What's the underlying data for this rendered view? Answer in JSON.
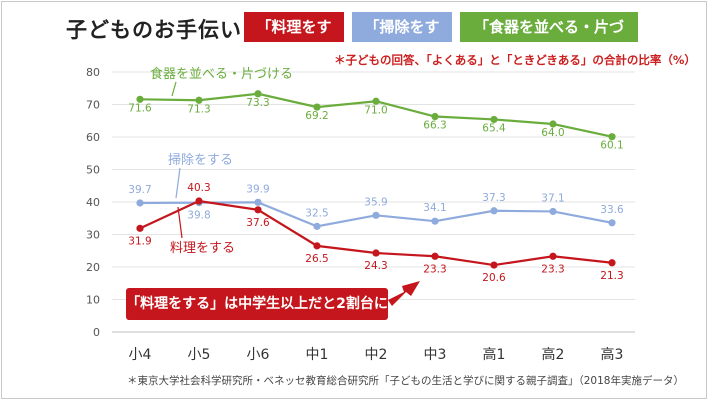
{
  "title": "子どものお手伝い",
  "legend": [
    {
      "label": "「料理をする」",
      "color": "#c4161c"
    },
    {
      "label": "「掃除をする」",
      "color": "#8faadc"
    },
    {
      "label": "「食器を並べる・片づける」",
      "color": "#6aad3c"
    }
  ],
  "note": "＊子どもの回答、「よくある」と「ときどきある」の合計の比率（%）",
  "source": "＊東京大学社会科学研究所・ベネッセ教育総合研究所「子どもの生活と学びに関する親子調査」（2018年実施データ）",
  "callout": "「料理をする」は中学生以上だと2割台に",
  "chart_data": {
    "type": "line",
    "categories": [
      "小4",
      "小5",
      "小6",
      "中1",
      "中2",
      "中3",
      "高1",
      "高2",
      "高3"
    ],
    "ylim": [
      0,
      80
    ],
    "yticks": [
      0,
      10,
      20,
      30,
      40,
      50,
      60,
      70,
      80
    ],
    "grid": true,
    "series": [
      {
        "name": "食器を並べる・片づける",
        "color": "#6aad3c",
        "values": [
          71.6,
          71.3,
          73.3,
          69.2,
          71.0,
          66.3,
          65.4,
          64.0,
          60.1
        ],
        "labels": [
          "71.6",
          "71.3",
          "73.3",
          "69.2",
          "71.0",
          "66.3",
          "65.4",
          "64.0",
          "60.1"
        ]
      },
      {
        "name": "掃除をする",
        "color": "#8faadc",
        "values": [
          39.7,
          39.8,
          39.9,
          32.5,
          35.9,
          34.1,
          37.3,
          37.1,
          33.6
        ],
        "labels": [
          "39.7",
          "39.8",
          "39.9",
          "32.5",
          "35.9",
          "34.1",
          "37.3",
          "37.1",
          "33.6"
        ]
      },
      {
        "name": "料理をする",
        "color": "#c4161c",
        "values": [
          31.9,
          40.3,
          37.6,
          26.5,
          24.3,
          23.3,
          20.6,
          23.3,
          21.3
        ],
        "labels": [
          "31.9",
          "40.3",
          "37.6",
          "26.5",
          "24.3",
          "23.3",
          "20.6",
          "23.3",
          "21.3"
        ]
      }
    ]
  }
}
